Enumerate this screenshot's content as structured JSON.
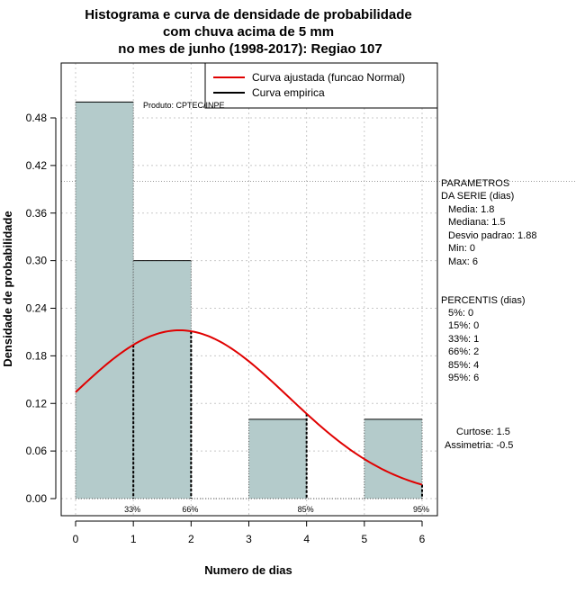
{
  "chart_data": {
    "type": "bar",
    "title_lines": [
      "Histograma e curva de densidade de probabilidade",
      "com chuva acima de 5 mm",
      "no mes de junho (1998-2017): Regiao 107"
    ],
    "xlabel": "Numero de dias",
    "ylabel": "Densidade de probabilidade",
    "xlim": [
      -0.2,
      6.2
    ],
    "ylim": [
      -0.02,
      0.57
    ],
    "x_ticks": [
      0,
      1,
      2,
      3,
      4,
      5,
      6
    ],
    "y_ticks": [
      0.0,
      0.06,
      0.12,
      0.18,
      0.24,
      0.3,
      0.36,
      0.42,
      0.48
    ],
    "y_tick_labels": [
      "0.00",
      "0.06",
      "0.12",
      "0.18",
      "0.24",
      "0.30",
      "0.36",
      "0.42",
      "0.48"
    ],
    "grid": true,
    "bar_color": "#b4cbcb",
    "bins": [
      {
        "x0": 0,
        "x1": 1,
        "density": 0.5
      },
      {
        "x0": 1,
        "x1": 2,
        "density": 0.3
      },
      {
        "x0": 2,
        "x1": 3,
        "density": 0.0
      },
      {
        "x0": 3,
        "x1": 4,
        "density": 0.1
      },
      {
        "x0": 4,
        "x1": 5,
        "density": 0.0
      },
      {
        "x0": 5,
        "x1": 6,
        "density": 0.1
      }
    ],
    "fitted_curve": {
      "name": "Curva ajustada (funcao Normal)",
      "color": "#e00000",
      "distribution": "normal",
      "mean": 1.8,
      "sd": 1.88,
      "x_range": [
        0,
        6
      ]
    },
    "empirical_curve": {
      "name": "Curva empirica",
      "color": "#000000"
    },
    "percentile_markers": [
      {
        "x": 1,
        "label": "33%"
      },
      {
        "x": 2,
        "label": "66%"
      },
      {
        "x": 4,
        "label": "85%"
      },
      {
        "x": 6,
        "label": "95%"
      }
    ],
    "legend_position": "top-right",
    "source_note": "Produto: CPTEC/INPE",
    "reference_line_y": 0.4
  },
  "side_panel": {
    "params_header_1": "PARAMETROS",
    "params_header_2": "DA SERIE (dias)",
    "media": "Media: 1.8",
    "mediana": "Mediana: 1.5",
    "desvio": "Desvio padrao: 1.88",
    "min": "Min: 0",
    "max": "Max: 6",
    "percentis_header": "PERCENTIS (dias)",
    "percentis": [
      "5%: 0",
      "15%: 0",
      "33%: 1",
      "66%: 2",
      "85%: 4",
      "95%: 6"
    ],
    "curtose": "Curtose: 1.5",
    "assimetria": "Assimetria: -0.5"
  }
}
